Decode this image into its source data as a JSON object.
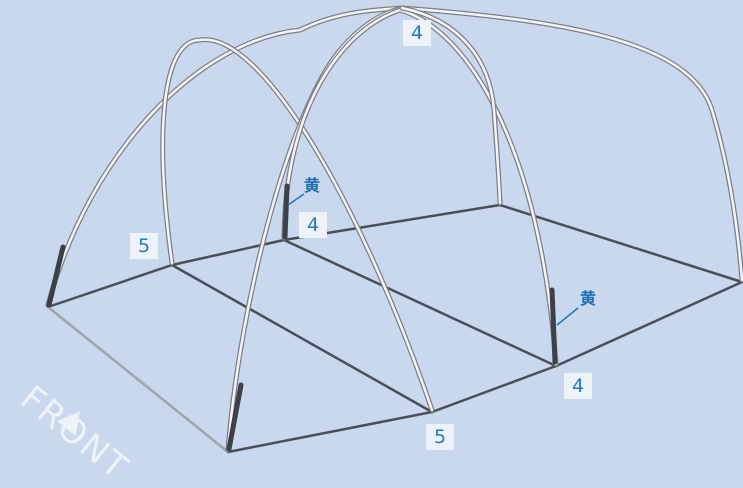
{
  "diagram": {
    "labels": {
      "top_center": "4",
      "left_back": "5",
      "center_left": "4",
      "right_front": "4",
      "bottom_center": "5"
    },
    "color_tags": {
      "center": "黄",
      "right": "黄"
    },
    "direction": {
      "text": "FRONT",
      "arrow_icon": "triangle-arrow-icon"
    },
    "colors": {
      "background": "#c9d8ec",
      "frame_line": "#4a4f57",
      "pole_outline": "#7a7f88",
      "pole_fill": "#f4f4f4",
      "label_text": "#2478c0",
      "label_bg": "#eef3fa",
      "front_edge": "#9fa4aa"
    }
  }
}
